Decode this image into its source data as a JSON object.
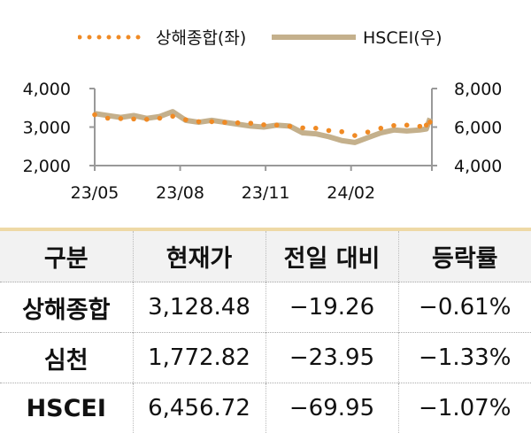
{
  "chart_data": {
    "type": "line",
    "x": [
      "2023-05-01",
      "2023-05-15",
      "2023-05-29",
      "2023-06-12",
      "2023-06-26",
      "2023-07-10",
      "2023-07-24",
      "2023-08-07",
      "2023-08-21",
      "2023-09-04",
      "2023-09-18",
      "2023-10-02",
      "2023-10-16",
      "2023-10-30",
      "2023-11-13",
      "2023-11-27",
      "2023-12-11",
      "2023-12-25",
      "2024-01-08",
      "2024-01-22",
      "2024-02-05",
      "2024-02-19",
      "2024-03-04",
      "2024-03-18",
      "2024-04-01",
      "2024-04-15",
      "2024-04-22",
      "2024-04-26"
    ],
    "series": [
      {
        "name": "상해종합(좌)",
        "axis": "left",
        "style": "dotted",
        "color": "#f08a24",
        "values": [
          3320,
          3230,
          3220,
          3210,
          3200,
          3230,
          3280,
          3190,
          3140,
          3140,
          3120,
          3110,
          3100,
          3060,
          3050,
          3020,
          2980,
          2970,
          2910,
          2880,
          2780,
          2870,
          2970,
          3040,
          3050,
          3020,
          3050,
          3128
        ]
      },
      {
        "name": "HSCEI(우)",
        "axis": "right",
        "style": "thick-line",
        "color": "#c4b08c",
        "values": [
          6700,
          6600,
          6500,
          6600,
          6450,
          6550,
          6800,
          6350,
          6250,
          6350,
          6250,
          6150,
          6050,
          6000,
          6100,
          6050,
          5700,
          5650,
          5500,
          5300,
          5200,
          5450,
          5700,
          5850,
          5800,
          5850,
          5900,
          6457
        ]
      }
    ],
    "xticks": [
      "23/05",
      "23/08",
      "23/11",
      "24/02"
    ],
    "xtick_dates": [
      "2023-05-01",
      "2023-08-01",
      "2023-11-01",
      "2024-02-01"
    ],
    "xlim": [
      "2023-05-01",
      "2024-04-28"
    ],
    "left_axis": {
      "ylim": [
        2000,
        4000
      ],
      "ticks": [
        "4,000",
        "3,000",
        "2,000"
      ]
    },
    "right_axis": {
      "ylim": [
        4000,
        8000
      ],
      "ticks": [
        "8,000",
        "6,000",
        "4,000"
      ]
    },
    "grid": false,
    "legend": "top"
  },
  "table": {
    "headers": [
      "구분",
      "현재가",
      "전일 대비",
      "등락률"
    ],
    "rows": [
      [
        "상해종합",
        "3,128.48",
        "−19.26",
        "−0.61%"
      ],
      [
        "심천",
        "1,772.82",
        "−23.95",
        "−1.33%"
      ],
      [
        "HSCEI",
        "6,456.72",
        "−69.95",
        "−1.07%"
      ]
    ]
  }
}
